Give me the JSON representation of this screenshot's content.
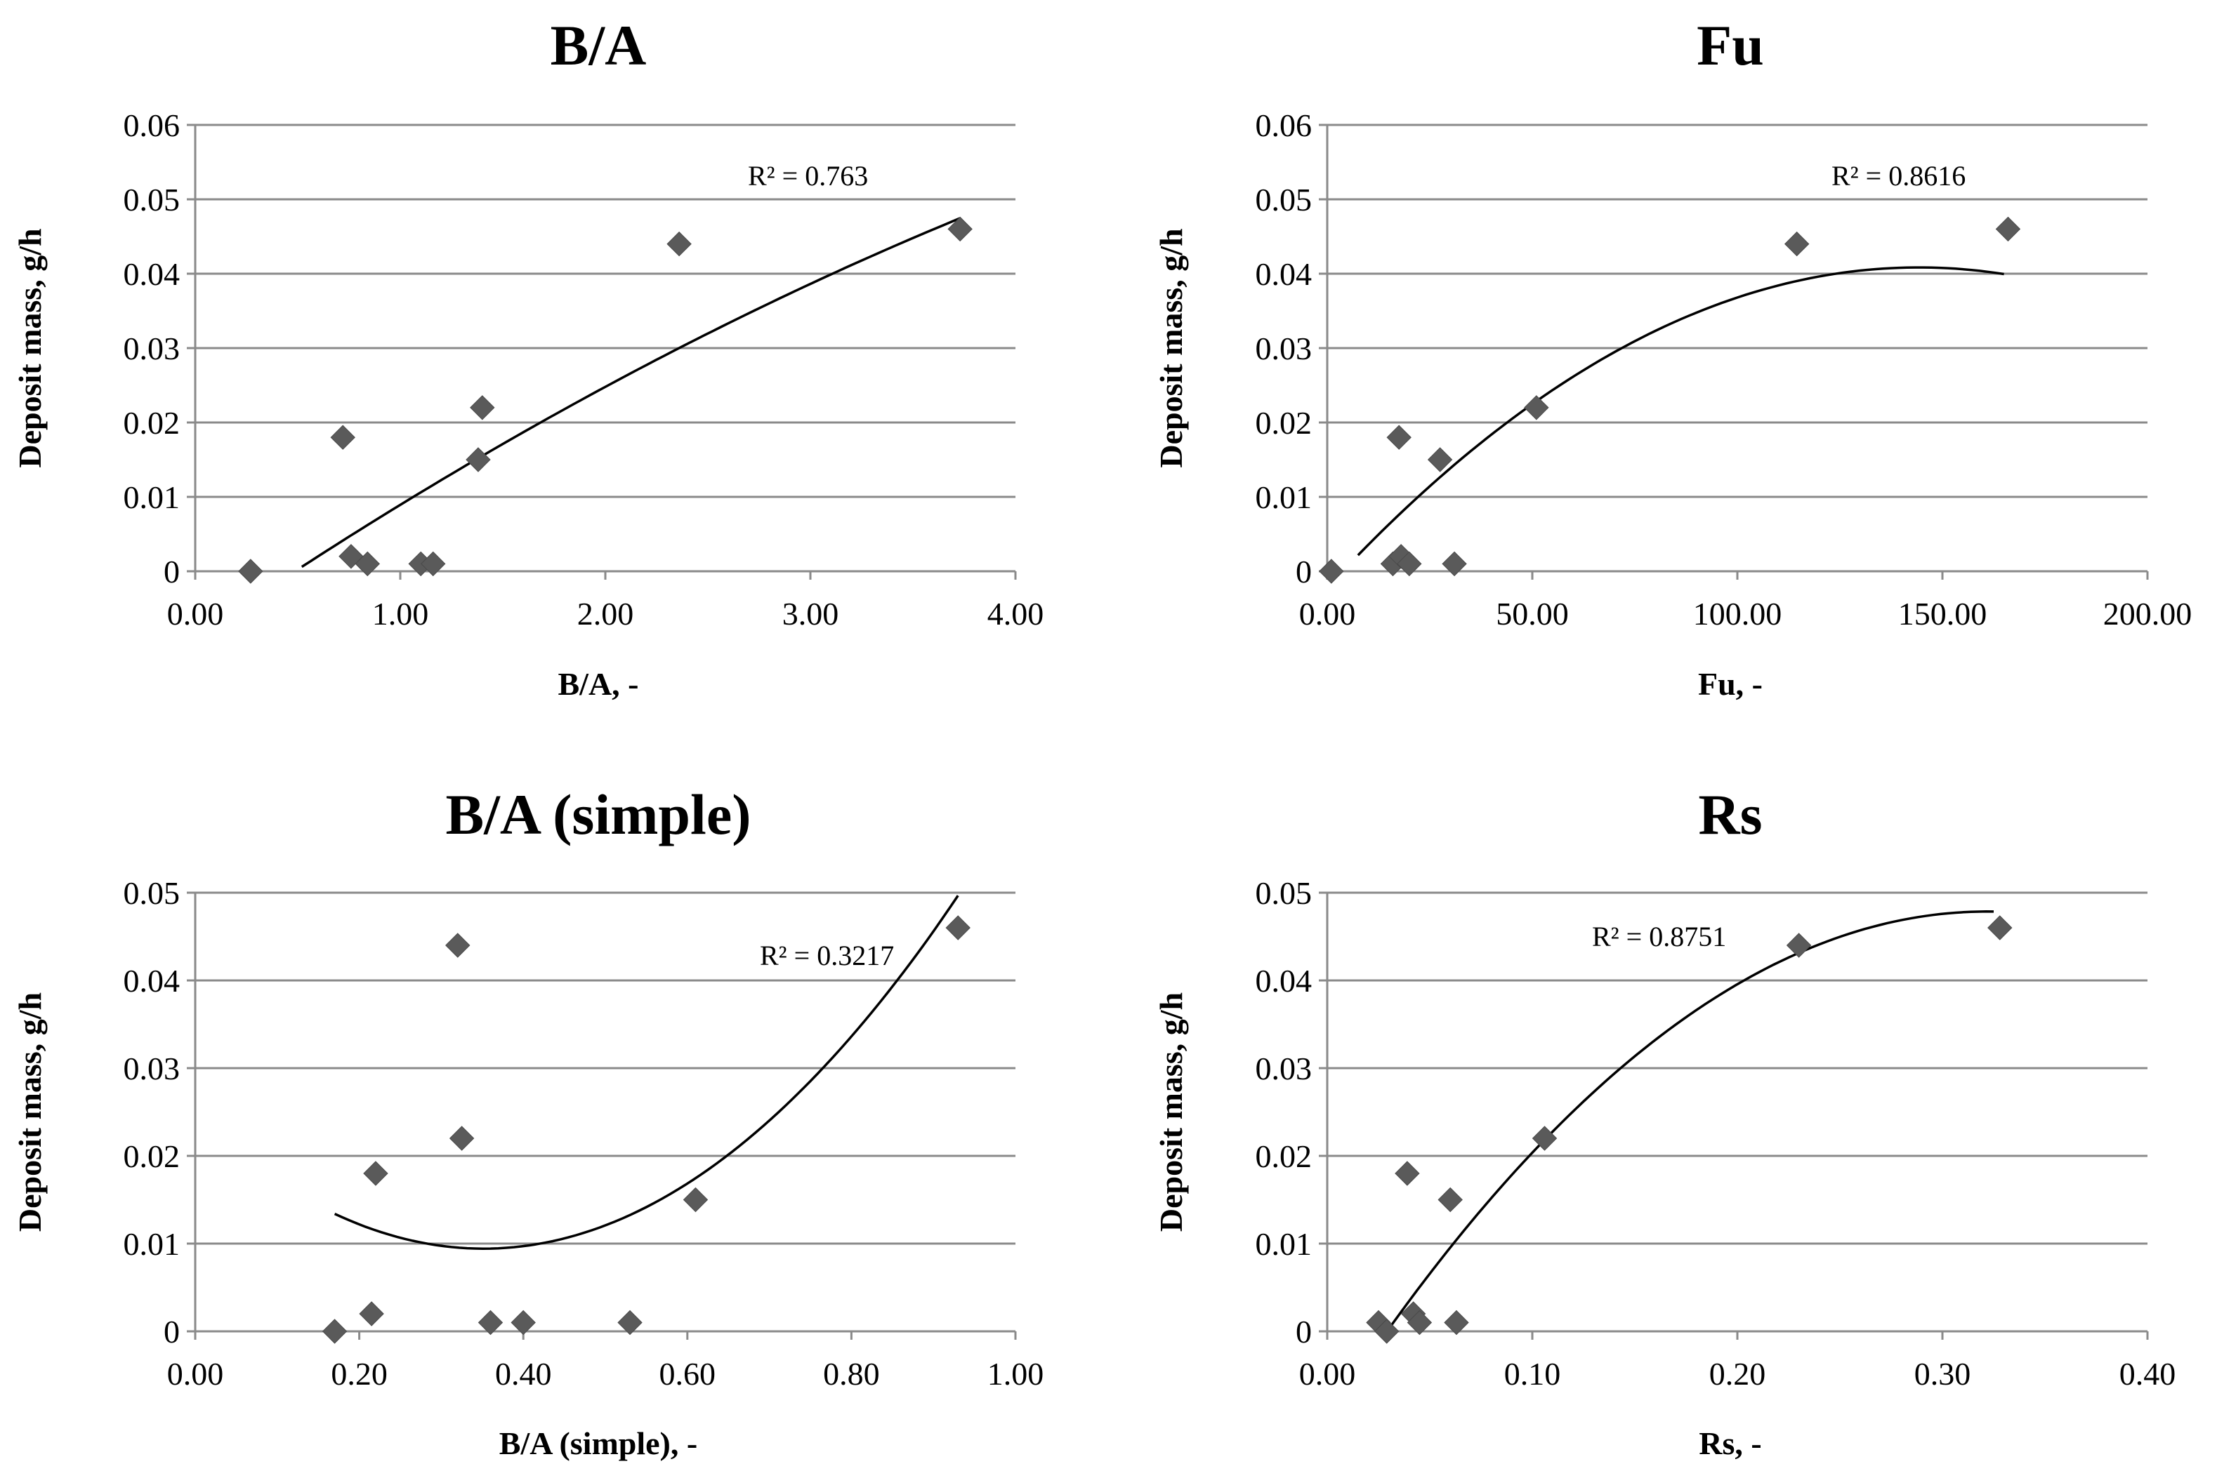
{
  "chart_data": [
    {
      "type": "scatter",
      "title": "B/A",
      "xlabel": "B/A, -",
      "ylabel": "Deposit mass, g/h",
      "xlim": [
        0,
        4
      ],
      "ylim": [
        0,
        0.06
      ],
      "x_ticks": [
        "0.00",
        "1.00",
        "2.00",
        "3.00",
        "4.00"
      ],
      "y_ticks": [
        "0",
        "0.01",
        "0.02",
        "0.03",
        "0.04",
        "0.05",
        "0.06"
      ],
      "grid": "horizontal",
      "legend": "none",
      "series": [
        {
          "name": "Deposit mass",
          "x": [
            0.27,
            0.72,
            0.76,
            0.84,
            1.1,
            1.16,
            1.38,
            1.4,
            2.36,
            3.73
          ],
          "y": [
            0.0,
            0.018,
            0.002,
            0.001,
            0.001,
            0.001,
            0.015,
            0.022,
            0.044,
            0.046
          ]
        }
      ],
      "trendline": {
        "kind": "polynomial-2",
        "x_range": [
          0.52,
          3.73
        ],
        "coeffs": [
          -0.00895,
          0.01889,
          -0.00101
        ],
        "label": "R² = 0.763"
      }
    },
    {
      "type": "scatter",
      "title": "Fu",
      "xlabel": "Fu, -",
      "ylabel": "Deposit mass, g/h",
      "xlim": [
        0,
        200
      ],
      "ylim": [
        0,
        0.06
      ],
      "x_ticks": [
        "0.00",
        "50.00",
        "100.00",
        "150.00",
        "200.00"
      ],
      "y_ticks": [
        "0",
        "0.01",
        "0.02",
        "0.03",
        "0.04",
        "0.05",
        "0.06"
      ],
      "grid": "horizontal",
      "legend": "none",
      "series": [
        {
          "name": "Deposit mass",
          "x": [
            1.0,
            16.0,
            17.5,
            18.0,
            20.0,
            27.5,
            31.0,
            51.0,
            114.5,
            166.0
          ],
          "y": [
            0.0,
            0.001,
            0.018,
            0.002,
            0.001,
            0.015,
            0.001,
            0.022,
            0.044,
            0.046
          ]
        }
      ],
      "trendline": {
        "kind": "polynomial-2",
        "x_range": [
          7.5,
          165.0
        ],
        "coeffs": [
          -0.0022,
          0.000597,
          -2.07e-06
        ],
        "label": "R² = 0.8616"
      }
    },
    {
      "type": "scatter",
      "title": "B/A (simple)",
      "xlabel": "B/A (simple), -",
      "ylabel": "Deposit mass, g/h",
      "xlim": [
        0,
        1
      ],
      "ylim": [
        0,
        0.05
      ],
      "x_ticks": [
        "0.00",
        "0.20",
        "0.40",
        "0.60",
        "0.80",
        "1.00"
      ],
      "y_ticks": [
        "0",
        "0.01",
        "0.02",
        "0.03",
        "0.04",
        "0.05"
      ],
      "grid": "horizontal",
      "legend": "none",
      "series": [
        {
          "name": "Deposit mass",
          "x": [
            0.17,
            0.215,
            0.22,
            0.32,
            0.325,
            0.36,
            0.4,
            0.53,
            0.61,
            0.93
          ],
          "y": [
            0.0,
            0.002,
            0.018,
            0.044,
            0.022,
            0.001,
            0.001,
            0.001,
            0.015,
            0.046
          ]
        }
      ],
      "trendline": {
        "kind": "polynomial-2",
        "x_range": [
          0.17,
          0.93
        ],
        "coeffs": [
          0.0243,
          -0.0846,
          0.1203
        ],
        "label": "R² = 0.3217"
      }
    },
    {
      "type": "scatter",
      "title": "Rs",
      "xlabel": "Rs, -",
      "ylabel": "Deposit mass, g/h",
      "xlim": [
        0,
        0.4
      ],
      "ylim": [
        0,
        0.05
      ],
      "x_ticks": [
        "0.00",
        "0.10",
        "0.20",
        "0.30",
        "0.40"
      ],
      "y_ticks": [
        "0",
        "0.01",
        "0.02",
        "0.03",
        "0.04",
        "0.05"
      ],
      "grid": "horizontal",
      "legend": "none",
      "series": [
        {
          "name": "Deposit mass",
          "x": [
            0.025,
            0.029,
            0.039,
            0.042,
            0.045,
            0.06,
            0.063,
            0.106,
            0.23,
            0.328
          ],
          "y": [
            0.001,
            0.0,
            0.018,
            0.002,
            0.001,
            0.015,
            0.001,
            0.022,
            0.044,
            0.046
          ]
        }
      ],
      "trendline": {
        "kind": "polynomial-2",
        "x_range": [
          0.029,
          0.325
        ],
        "coeffs": [
          -0.01001,
          0.3596,
          -0.5587
        ],
        "label": "R² = 0.8751"
      }
    }
  ]
}
